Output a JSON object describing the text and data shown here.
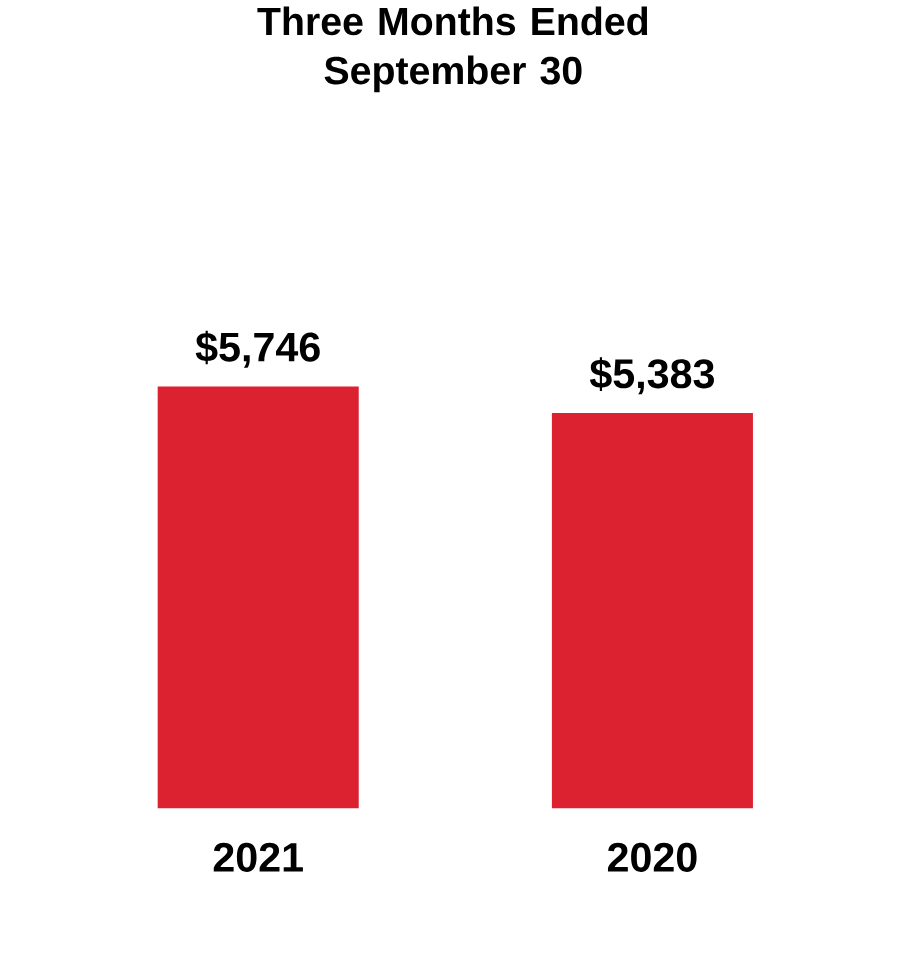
{
  "chart_data": {
    "type": "bar",
    "title": "Three Months Ended September 30",
    "categories": [
      "2021",
      "2020"
    ],
    "values": [
      5746,
      5383
    ],
    "value_labels": [
      "$5,746",
      "$5,383"
    ],
    "color": "#dc2130"
  }
}
